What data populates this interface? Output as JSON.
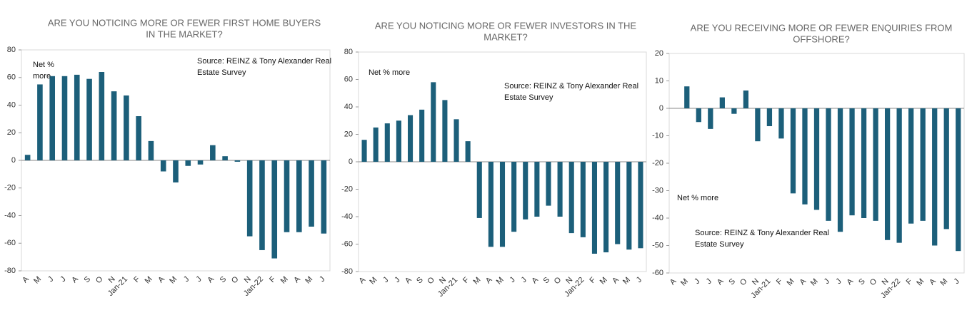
{
  "chart_data": [
    {
      "type": "bar",
      "title": [
        "ARE YOU NOTICING MORE OR FEWER FIRST HOME BUYERS",
        "IN THE MARKET?"
      ],
      "categories": [
        "A",
        "M",
        "J",
        "J",
        "A",
        "S",
        "O",
        "N",
        "Jan-21",
        "F",
        "M",
        "A",
        "M",
        "J",
        "J",
        "A",
        "S",
        "O",
        "N",
        "Jan-22",
        "F",
        "M",
        "A",
        "M",
        "J"
      ],
      "values": [
        4,
        55,
        61,
        61,
        62,
        59,
        64,
        50,
        47,
        32,
        14,
        -8,
        -16,
        -4,
        -3,
        11,
        3,
        -1,
        -55,
        -65,
        -71,
        -52,
        -52,
        -48,
        -53
      ],
      "color": "#1c5f7a",
      "ylim": [
        -80,
        80
      ],
      "yticks": [
        -80,
        -60,
        -40,
        -20,
        0,
        20,
        40,
        60,
        80
      ],
      "annotations": [
        [
          "Net %",
          "more"
        ],
        [
          "Source: REINZ & Tony Alexander Real",
          "Estate Survey"
        ]
      ]
    },
    {
      "type": "bar",
      "title": [
        "ARE YOU NOTICING MORE OR FEWER INVESTORS IN THE",
        "MARKET?"
      ],
      "categories": [
        "A",
        "M",
        "J",
        "J",
        "A",
        "S",
        "O",
        "N",
        "Jan-21",
        "F",
        "M",
        "A",
        "M",
        "J",
        "J",
        "A",
        "S",
        "O",
        "N",
        "Jan-22",
        "F",
        "M",
        "A",
        "M",
        "J"
      ],
      "values": [
        16,
        25,
        28,
        30,
        34,
        38,
        58,
        45,
        31,
        15,
        -41,
        -62,
        -62,
        -51,
        -42,
        -40,
        -32,
        -40,
        -52,
        -55,
        -67,
        -66,
        -60,
        -64,
        -63
      ],
      "color": "#1c5f7a",
      "ylim": [
        -80,
        80
      ],
      "yticks": [
        -80,
        -60,
        -40,
        -20,
        0,
        20,
        40,
        60,
        80
      ],
      "annotations": [
        [
          "Net % more"
        ],
        [
          "Source: REINZ & Tony Alexander Real",
          "Estate Survey"
        ]
      ]
    },
    {
      "type": "bar",
      "title": [
        "ARE YOU RECEIVING MORE OR FEWER ENQUIRIES FROM",
        "OFFSHORE?"
      ],
      "categories": [
        "A",
        "M",
        "J",
        "J",
        "A",
        "S",
        "O",
        "N",
        "Jan-21",
        "F",
        "M",
        "A",
        "M",
        "J",
        "J",
        "A",
        "S",
        "O",
        "N",
        "Jan-22",
        "F",
        "M",
        "A",
        "M",
        "J"
      ],
      "values": [
        null,
        8,
        -5,
        -7.5,
        4,
        -2,
        6.5,
        -12,
        -6.5,
        -11,
        -31,
        -35,
        -37,
        -41,
        -45,
        -39,
        -40,
        -41,
        -48,
        -49,
        -42,
        -41,
        -50,
        -44,
        -52
      ],
      "color": "#1c5f7a",
      "ylim": [
        -60,
        20
      ],
      "yticks": [
        -60,
        -50,
        -40,
        -30,
        -20,
        -10,
        0,
        10,
        20
      ],
      "annotations": [
        [
          "Net % more"
        ],
        [
          "Source: REINZ & Tony Alexander Real",
          "Estate Survey"
        ]
      ]
    }
  ]
}
